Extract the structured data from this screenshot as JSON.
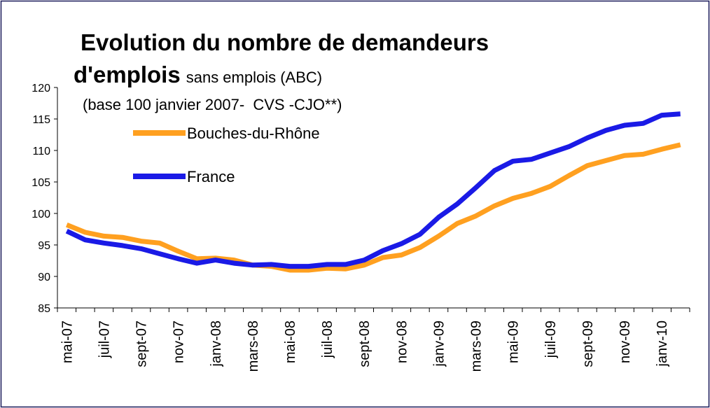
{
  "chart_data": {
    "type": "line",
    "title": [
      "Evolution du nombre de demandeurs",
      "d'emplois"
    ],
    "subtitle": "sans emplois (ABC)",
    "note": "(base 100 janvier 2007-  CVS -CJO**)",
    "categories": [
      "mai-07",
      null,
      "juil-07",
      null,
      "sept-07",
      null,
      "nov-07",
      null,
      "janv-08",
      null,
      "mars-08",
      null,
      "mai-08",
      null,
      "juil-08",
      null,
      "sept-08",
      null,
      "nov-08",
      null,
      "janv-09",
      null,
      "mars-09",
      null,
      "mai-09",
      null,
      "juil-09",
      null,
      "sept-09",
      null,
      "nov-09",
      null,
      "janv-10",
      null
    ],
    "series": [
      {
        "name": "Bouches-du-Rhône",
        "color": "#ffa020",
        "values": [
          98.2,
          97.0,
          96.4,
          96.2,
          95.6,
          95.3,
          94.0,
          92.8,
          92.9,
          92.6,
          91.8,
          91.6,
          91.0,
          91.0,
          91.3,
          91.2,
          91.8,
          93.0,
          93.4,
          94.6,
          96.4,
          98.4,
          99.6,
          101.2,
          102.4,
          103.2,
          104.3,
          106.0,
          107.6,
          108.4,
          109.2,
          109.4,
          110.2,
          110.9
        ]
      },
      {
        "name": "France",
        "color": "#1a1ae6",
        "values": [
          97.2,
          95.8,
          95.3,
          94.9,
          94.4,
          93.6,
          92.8,
          92.1,
          92.6,
          92.1,
          91.8,
          91.9,
          91.6,
          91.6,
          91.9,
          91.9,
          92.6,
          94.1,
          95.2,
          96.7,
          99.4,
          101.5,
          104.1,
          106.8,
          108.3,
          108.6,
          109.6,
          110.6,
          112.0,
          113.2,
          114.0,
          114.3,
          115.6,
          115.8
        ]
      }
    ],
    "ylim": [
      85,
      120
    ],
    "yticks": [
      85,
      90,
      95,
      100,
      105,
      110,
      115,
      120
    ],
    "grid": false
  }
}
